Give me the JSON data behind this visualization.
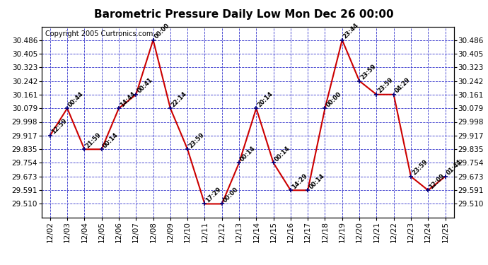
{
  "title": "Barometric Pressure Daily Low Mon Dec 26 00:00",
  "copyright": "Copyright 2005 Curtronics.com",
  "x_labels": [
    "12/02",
    "12/03",
    "12/04",
    "12/05",
    "12/06",
    "12/07",
    "12/08",
    "12/09",
    "12/10",
    "12/11",
    "12/12",
    "12/13",
    "12/14",
    "12/15",
    "12/16",
    "12/17",
    "12/18",
    "12/19",
    "12/20",
    "12/21",
    "12/22",
    "12/23",
    "12/24",
    "12/25"
  ],
  "y_values": [
    29.917,
    30.079,
    29.835,
    29.835,
    30.079,
    30.161,
    30.486,
    30.079,
    29.835,
    29.51,
    29.51,
    29.754,
    30.079,
    29.754,
    29.591,
    29.591,
    30.079,
    30.486,
    30.242,
    30.161,
    30.161,
    29.673,
    29.591,
    29.673
  ],
  "time_labels": [
    "12:59",
    "00:44",
    "21:59",
    "00:14",
    "14:44",
    "00:41",
    "00:00",
    "22:14",
    "23:59",
    "17:29",
    "00:00",
    "00:14",
    "20:14",
    "00:14",
    "14:29",
    "00:14",
    "00:00",
    "23:44",
    "23:59",
    "23:59",
    "04:29",
    "23:59",
    "12:09",
    "01:44"
  ],
  "y_ticks": [
    29.51,
    29.591,
    29.673,
    29.754,
    29.835,
    29.917,
    29.998,
    30.079,
    30.161,
    30.242,
    30.323,
    30.405,
    30.486
  ],
  "y_min": 29.43,
  "y_max": 30.566,
  "line_color": "#cc0000",
  "marker_color": "#000080",
  "bg_color": "#ffffff",
  "plot_bg_color": "#ffffff",
  "grid_color": "#3333cc",
  "title_fontsize": 11,
  "copyright_fontsize": 7
}
